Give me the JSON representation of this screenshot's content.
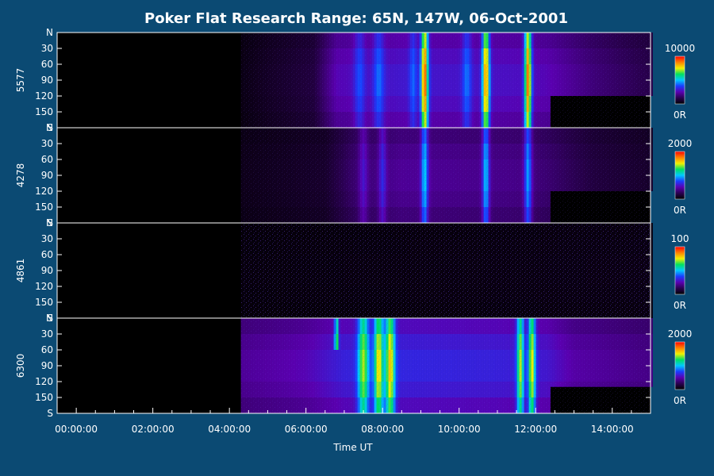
{
  "chart_data": {
    "type": "heatmap",
    "title": "Poker Flat Research Range: 65N, 147W, 06-Oct-2001",
    "xlabel": "Time UT",
    "x_ticks": [
      "00:00:00",
      "02:00:00",
      "04:00:00",
      "06:00:00",
      "08:00:00",
      "10:00:00",
      "12:00:00",
      "14:00:00"
    ],
    "x_tick_hours": [
      0,
      2,
      4,
      6,
      8,
      10,
      12,
      14
    ],
    "x_range_hours": [
      -0.5,
      15
    ],
    "y_ticks": [
      "N",
      "30",
      "60",
      "90",
      "120",
      "150",
      "S"
    ],
    "y_tick_values": [
      0,
      30,
      60,
      90,
      120,
      150,
      180
    ],
    "y_range": [
      0,
      180
    ],
    "colormap": [
      "#000000",
      "#2a0050",
      "#5a00b0",
      "#1a3cff",
      "#00c8ff",
      "#00e060",
      "#f0f000",
      "#ff8000",
      "#ff0000"
    ],
    "panels": [
      {
        "label": "5577",
        "cbar_max": "10000",
        "cbar_min": "0R",
        "data_start_hour": 4.3,
        "base": [
          [
            4.3,
            0.03
          ],
          [
            5.0,
            0.06
          ],
          [
            6.2,
            0.1
          ],
          [
            6.8,
            0.26
          ],
          [
            8.5,
            0.3
          ],
          [
            11.5,
            0.28
          ],
          [
            12.3,
            0.26
          ],
          [
            13.5,
            0.18
          ],
          [
            14.9,
            0.12
          ]
        ],
        "blank_after_hour": 12.4,
        "blank_from_angle": 120,
        "features": [
          {
            "t": 7.4,
            "w": 0.14,
            "a": 0.12
          },
          {
            "t": 7.9,
            "w": 0.14,
            "a": 0.14
          },
          {
            "t": 9.1,
            "w": 0.09,
            "a": 0.62
          },
          {
            "t": 10.7,
            "w": 0.09,
            "a": 0.58
          },
          {
            "t": 11.8,
            "w": 0.09,
            "a": 0.62
          },
          {
            "t": 8.8,
            "w": 0.1,
            "a": 0.12
          },
          {
            "t": 10.2,
            "w": 0.12,
            "a": 0.14
          }
        ]
      },
      {
        "label": "4278",
        "cbar_max": "2000",
        "cbar_min": "0R",
        "data_start_hour": 4.3,
        "base": [
          [
            4.3,
            0.04
          ],
          [
            6.5,
            0.07
          ],
          [
            7.2,
            0.16
          ],
          [
            8.5,
            0.22
          ],
          [
            11.5,
            0.2
          ],
          [
            12.3,
            0.17
          ],
          [
            13.5,
            0.1
          ],
          [
            14.9,
            0.07
          ]
        ],
        "blank_after_hour": 12.4,
        "blank_from_angle": 120,
        "features": [
          {
            "t": 7.5,
            "w": 0.12,
            "a": 0.12
          },
          {
            "t": 8.0,
            "w": 0.1,
            "a": 0.14
          },
          {
            "t": 9.1,
            "w": 0.09,
            "a": 0.3
          },
          {
            "t": 10.7,
            "w": 0.09,
            "a": 0.3
          },
          {
            "t": 11.8,
            "w": 0.1,
            "a": 0.28
          }
        ]
      },
      {
        "label": "4861",
        "cbar_max": "100",
        "cbar_min": "0R",
        "data_start_hour": 4.3,
        "base": [
          [
            4.3,
            0.02
          ],
          [
            14.9,
            0.03
          ]
        ],
        "blank_after_hour": null,
        "blank_from_angle": null,
        "features": []
      },
      {
        "label": "6300",
        "cbar_max": "2000",
        "cbar_min": "0R",
        "data_start_hour": 4.3,
        "base": [
          [
            4.3,
            0.22
          ],
          [
            6.0,
            0.26
          ],
          [
            7.0,
            0.32
          ],
          [
            8.5,
            0.33
          ],
          [
            11.0,
            0.32
          ],
          [
            12.3,
            0.3
          ],
          [
            13.0,
            0.24
          ],
          [
            14.9,
            0.2
          ]
        ],
        "blank_after_hour": 12.4,
        "blank_from_angle": 130,
        "features": [
          {
            "t": 7.5,
            "w": 0.14,
            "a": 0.4
          },
          {
            "t": 7.9,
            "w": 0.12,
            "a": 0.46
          },
          {
            "t": 8.2,
            "w": 0.12,
            "a": 0.48
          },
          {
            "t": 11.6,
            "w": 0.09,
            "a": 0.42
          },
          {
            "t": 11.9,
            "w": 0.09,
            "a": 0.46
          },
          {
            "t": 6.8,
            "w": 0.05,
            "a": 0.42,
            "ymax": 50
          }
        ]
      }
    ]
  }
}
